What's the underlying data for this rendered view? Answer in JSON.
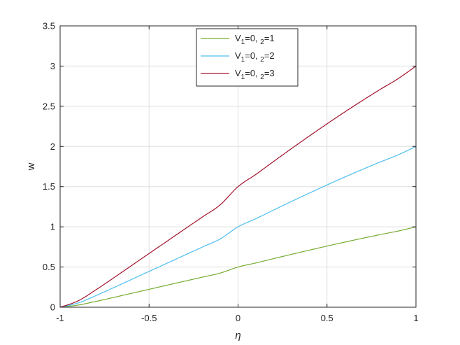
{
  "chart_data": {
    "type": "line",
    "title": "",
    "xlabel": "η",
    "ylabel": "w",
    "xlim": [
      -1,
      1
    ],
    "ylim": [
      0,
      3.5
    ],
    "xticks": [
      "-1",
      "-0.5",
      "0",
      "0.5",
      "1"
    ],
    "yticks": [
      "0",
      "0.5",
      "1",
      "1.5",
      "2",
      "2.5",
      "3",
      "3.5"
    ],
    "grid": true,
    "legend_position": "top-center",
    "x": [
      -1,
      -0.9,
      -0.8,
      -0.7,
      -0.6,
      -0.5,
      -0.4,
      -0.3,
      -0.2,
      -0.1,
      0,
      0.1,
      0.2,
      0.3,
      0.4,
      0.5,
      0.6,
      0.7,
      0.8,
      0.9,
      1
    ],
    "series": [
      {
        "legend": {
          "base": "V",
          "sub1": "1",
          "eq1": "=0,   ",
          "sub2": "2",
          "eq2": "=1"
        },
        "color": "#77ac30",
        "values": [
          0,
          0.0259,
          0.0716,
          0.1211,
          0.1719,
          0.2227,
          0.2733,
          0.3239,
          0.3744,
          0.4248,
          0.5,
          0.5506,
          0.6045,
          0.6576,
          0.7096,
          0.7604,
          0.8098,
          0.8576,
          0.9037,
          0.9479,
          1.0
        ]
      },
      {
        "legend": {
          "base": "V",
          "sub1": "1",
          "eq1": "=0,  ",
          "sub2": "2",
          "eq2": "=2"
        },
        "color": "#4dbeee",
        "values": [
          0,
          0.0518,
          0.1432,
          0.2422,
          0.3438,
          0.4454,
          0.5466,
          0.6478,
          0.7488,
          0.8496,
          1.0,
          1.1012,
          1.209,
          1.3152,
          1.4192,
          1.5208,
          1.6196,
          1.7152,
          1.8074,
          1.8958,
          2.0
        ]
      },
      {
        "legend": {
          "base": "V",
          "sub1": "1",
          "eq1": "=0, ",
          "sub2": "2",
          "eq2": "=3"
        },
        "color": "#a2142f",
        "values": [
          0,
          0.0777,
          0.2148,
          0.3633,
          0.5157,
          0.6681,
          0.8199,
          0.9717,
          1.1232,
          1.2744,
          1.5,
          1.6518,
          1.8135,
          1.9728,
          2.1288,
          2.2812,
          2.4294,
          2.5728,
          2.7111,
          2.8437,
          3.0
        ]
      }
    ]
  }
}
